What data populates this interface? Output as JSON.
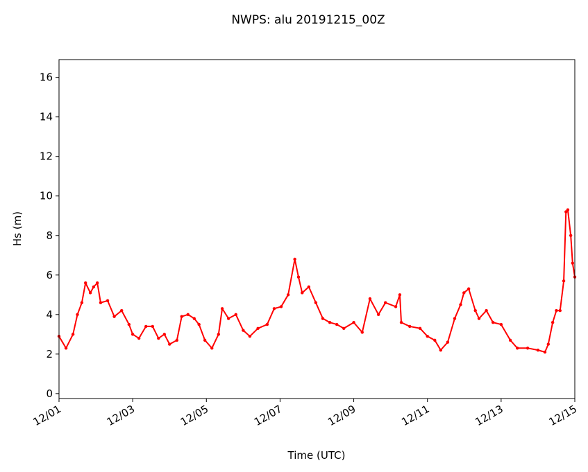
{
  "chart_data": {
    "type": "line",
    "title": "NWPS: alu 20191215_00Z",
    "x_label": "Time (UTC)",
    "y_label": "Hs (m)",
    "xlim": [
      0,
      14
    ],
    "ylim": [
      -0.25,
      16.9
    ],
    "xticks": [
      {
        "value": 0,
        "label": "12/01"
      },
      {
        "value": 2,
        "label": "12/03"
      },
      {
        "value": 4,
        "label": "12/05"
      },
      {
        "value": 6,
        "label": "12/07"
      },
      {
        "value": 8,
        "label": "12/09"
      },
      {
        "value": 10,
        "label": "12/11"
      },
      {
        "value": 12,
        "label": "12/13"
      },
      {
        "value": 14,
        "label": "12/15"
      }
    ],
    "yticks": [
      0,
      2,
      4,
      6,
      8,
      10,
      12,
      14,
      16
    ],
    "grid": false,
    "series": [
      {
        "name": "Hs",
        "color": "#ff0000",
        "x": [
          0,
          0.19,
          0.38,
          0.5,
          0.62,
          0.72,
          0.85,
          0.94,
          1.04,
          1.13,
          1.32,
          1.5,
          1.7,
          1.9,
          2.0,
          2.17,
          2.36,
          2.54,
          2.7,
          2.86,
          3.0,
          3.2,
          3.33,
          3.5,
          3.67,
          3.8,
          3.96,
          4.15,
          4.33,
          4.43,
          4.6,
          4.8,
          5.0,
          5.18,
          5.4,
          5.65,
          5.84,
          6.03,
          6.22,
          6.4,
          6.5,
          6.6,
          6.78,
          6.97,
          7.16,
          7.35,
          7.54,
          7.73,
          8.0,
          8.23,
          8.44,
          8.67,
          8.86,
          9.14,
          9.25,
          9.29,
          9.52,
          9.8,
          10.0,
          10.2,
          10.36,
          10.55,
          10.74,
          10.9,
          10.99,
          11.12,
          11.3,
          11.4,
          11.6,
          11.78,
          12.0,
          12.25,
          12.44,
          12.72,
          13.0,
          13.19,
          13.28,
          13.4,
          13.5,
          13.6,
          13.7,
          13.76,
          13.81,
          13.89,
          13.94,
          14.0
        ],
        "values": [
          2.9,
          2.3,
          3.0,
          4.0,
          4.6,
          5.6,
          5.1,
          5.4,
          5.6,
          4.6,
          4.7,
          3.9,
          4.2,
          3.5,
          3.0,
          2.8,
          3.4,
          3.4,
          2.8,
          3.0,
          2.5,
          2.7,
          3.9,
          4.0,
          3.8,
          3.5,
          2.7,
          2.3,
          3.0,
          4.3,
          3.8,
          4.0,
          3.2,
          2.9,
          3.3,
          3.5,
          4.3,
          4.4,
          5.0,
          6.8,
          5.9,
          5.1,
          5.4,
          4.6,
          3.8,
          3.6,
          3.5,
          3.3,
          3.6,
          3.1,
          4.8,
          4.0,
          4.6,
          4.4,
          5.0,
          3.6,
          3.4,
          3.3,
          2.9,
          2.7,
          2.2,
          2.6,
          3.8,
          4.5,
          5.1,
          5.3,
          4.2,
          3.8,
          4.2,
          3.6,
          3.5,
          2.7,
          2.3,
          2.3,
          2.2,
          2.1,
          2.5,
          3.6,
          4.2,
          4.2,
          5.7,
          9.2,
          9.3,
          8.0,
          6.6,
          5.9
        ]
      }
    ]
  }
}
